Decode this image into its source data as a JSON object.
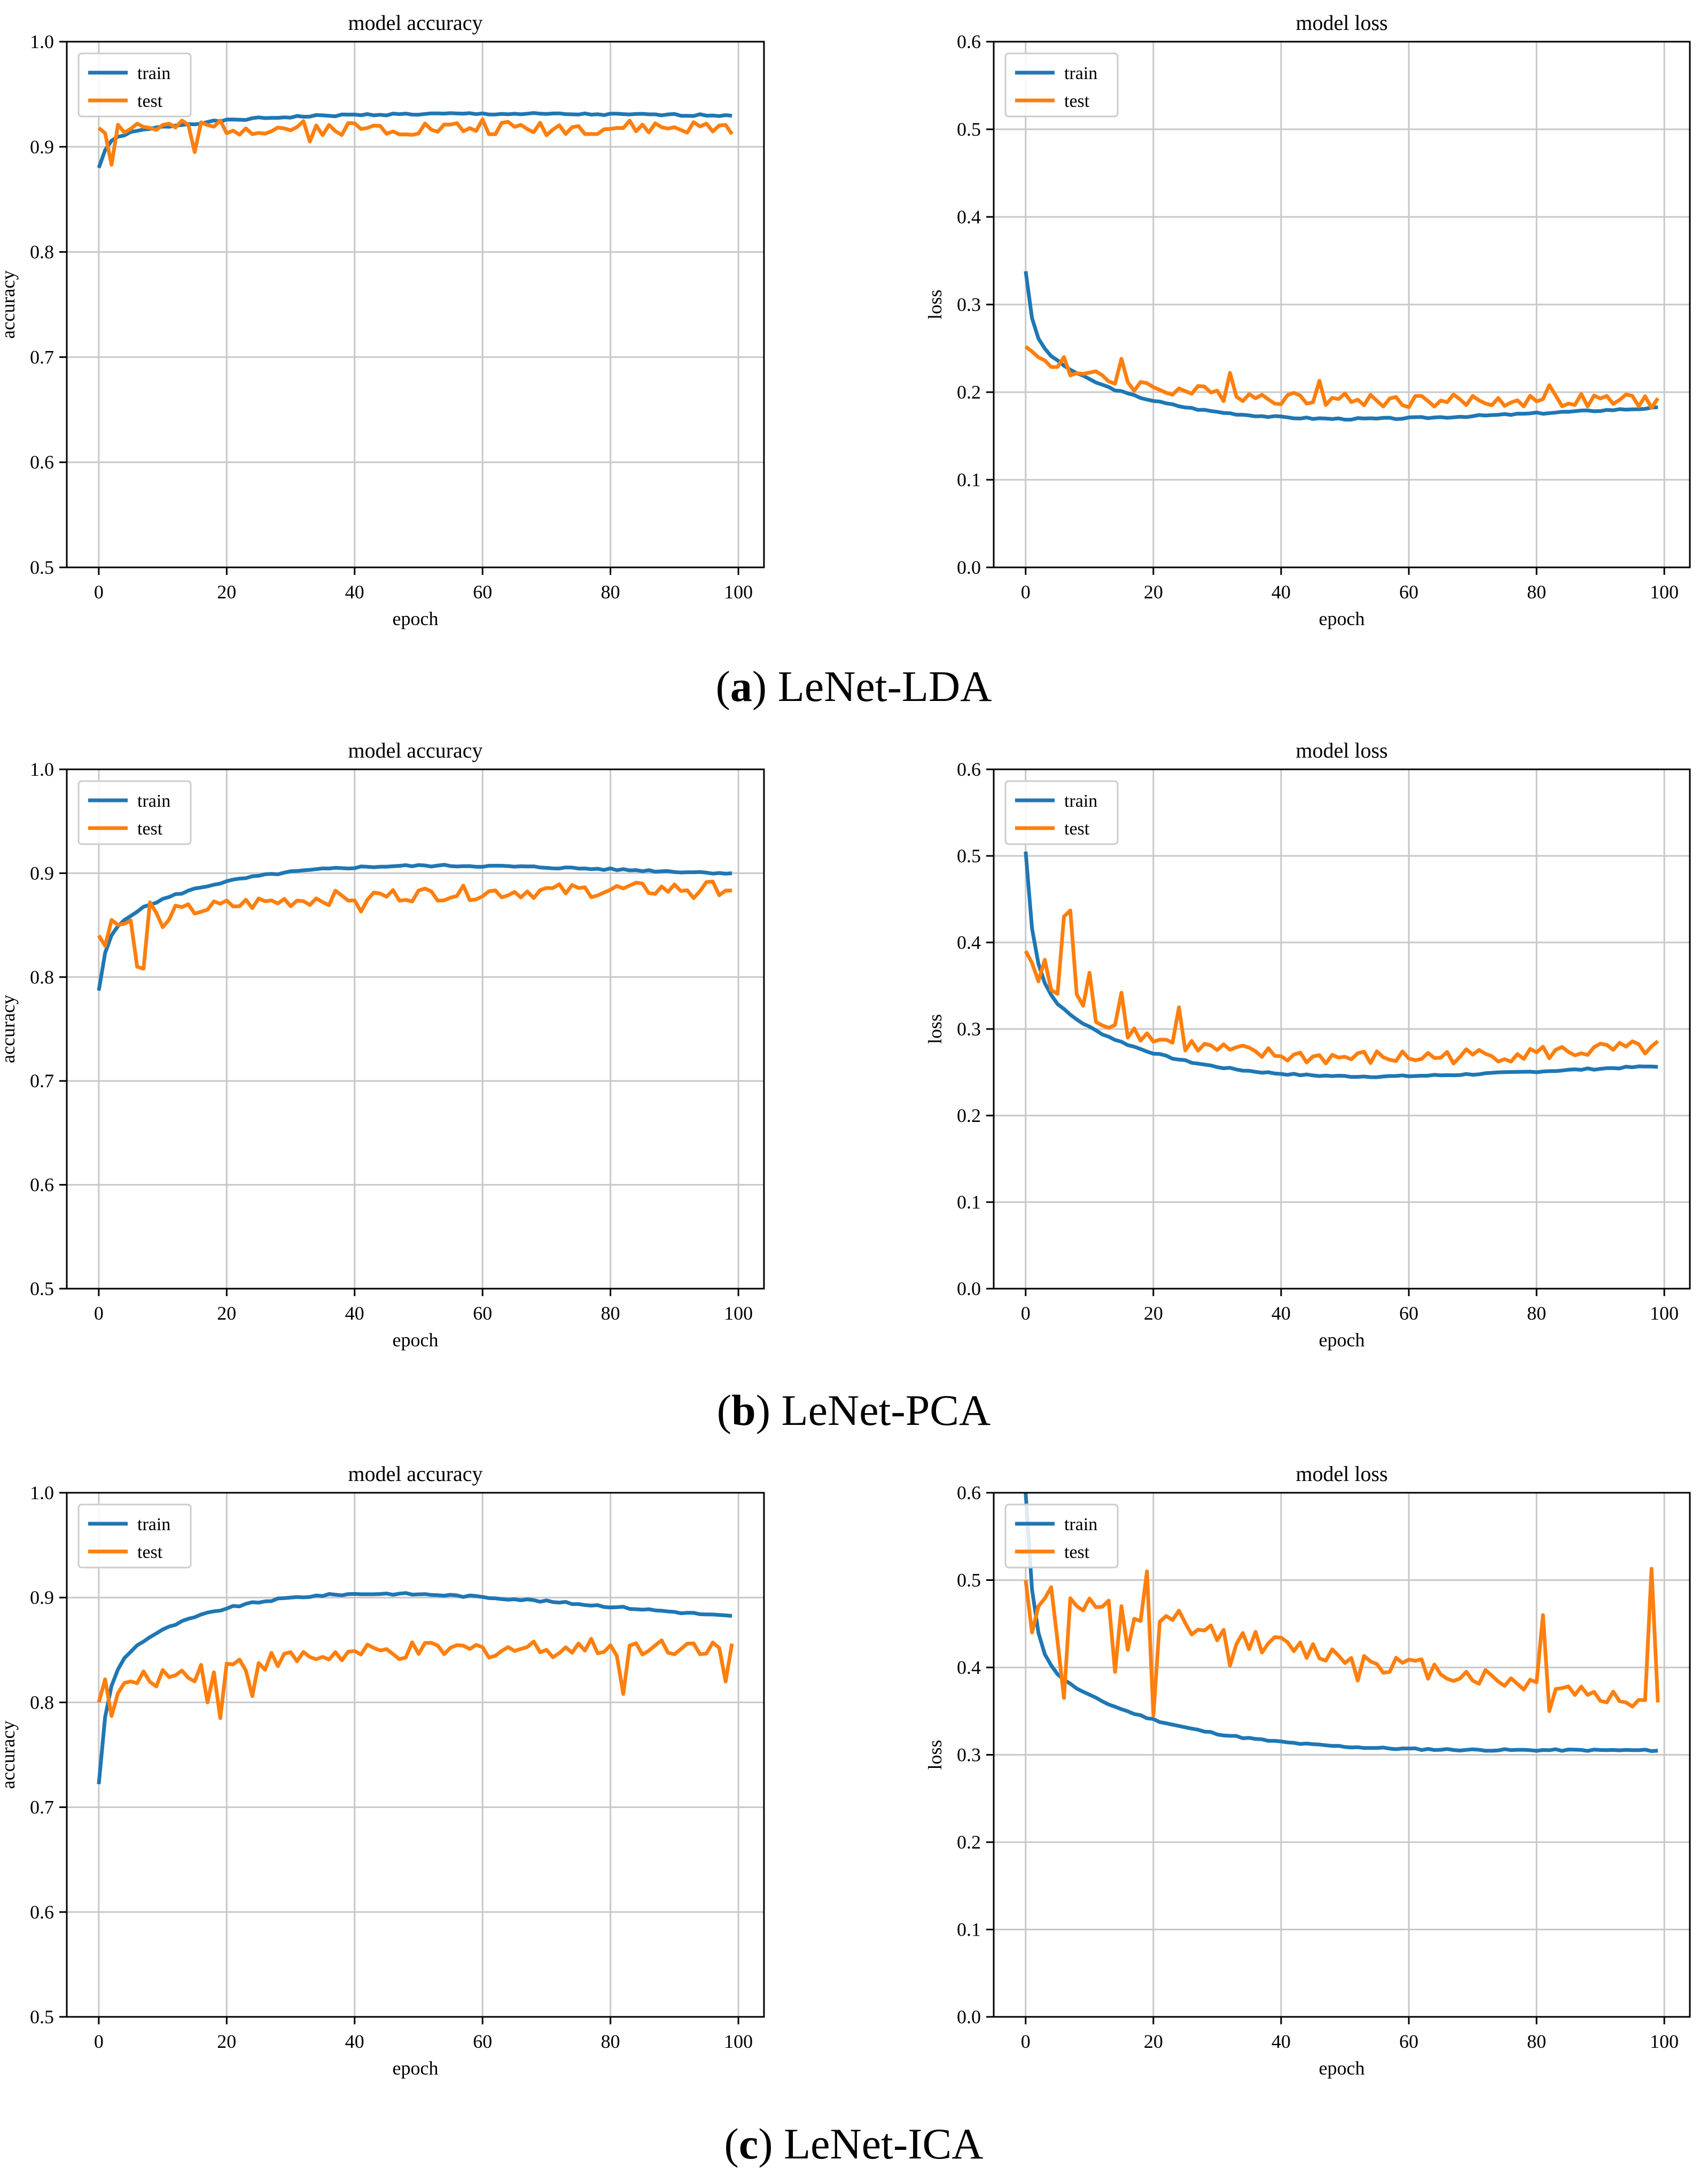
{
  "figure": {
    "captions": [
      {
        "letter": "a",
        "text": " LeNet-LDA"
      },
      {
        "letter": "b",
        "text": " LeNet-PCA"
      },
      {
        "letter": "c",
        "text": " LeNet-ICA"
      }
    ]
  },
  "colors": {
    "train": "#1f77b4",
    "test": "#ff7f0e",
    "grid": "#c8c8c8",
    "axis": "#000000"
  },
  "chart_data": [
    {
      "id": "lda-accuracy",
      "type": "line",
      "title": "model accuracy",
      "xlabel": "epoch",
      "ylabel": "accuracy",
      "xlim": [
        -5,
        104
      ],
      "ylim": [
        0.5,
        1.0
      ],
      "xticks": [
        0,
        20,
        40,
        60,
        80,
        100
      ],
      "yticks": [
        0.5,
        0.6,
        0.7,
        0.8,
        0.9,
        1.0
      ],
      "legend": "top-left",
      "series": [
        {
          "name": "train",
          "model": "curve",
          "start": 0.88,
          "end": 0.93,
          "jump": 0.022,
          "tau": 1.2,
          "kmid": 0.018,
          "noise": 0.001,
          "seed": 1
        },
        {
          "name": "test",
          "model": "curve",
          "start": 0.918,
          "end": 0.918,
          "jump": 0,
          "tau": 5,
          "kmid": 0.0,
          "noise": 0.007,
          "seed": 2,
          "spikes": [
            [
              2,
              0.883
            ],
            [
              6,
              0.922
            ],
            [
              15,
              0.895
            ],
            [
              19,
              0.925
            ],
            [
              33,
              0.905
            ],
            [
              60,
              0.926
            ]
          ]
        }
      ]
    },
    {
      "id": "lda-loss",
      "type": "line",
      "title": "model loss",
      "xlabel": "epoch",
      "ylabel": "loss",
      "xlim": [
        -5,
        104
      ],
      "ylim": [
        0.0,
        0.6
      ],
      "xticks": [
        0,
        20,
        40,
        60,
        80,
        100
      ],
      "yticks": [
        0.0,
        0.1,
        0.2,
        0.3,
        0.4,
        0.5,
        0.6
      ],
      "legend": "top-left",
      "series": [
        {
          "name": "train",
          "model": "curve",
          "start": 0.338,
          "end": 0.182,
          "jump": -0.055,
          "tau": 1.0,
          "kmid": -0.075,
          "noise": 0.001,
          "seed": 3
        },
        {
          "name": "test",
          "model": "curve",
          "start": 0.252,
          "end": 0.19,
          "jump": 0,
          "tau": 5,
          "kmid": -0.035,
          "noise": 0.008,
          "seed": 4,
          "spikes": [
            [
              6,
              0.24
            ],
            [
              15,
              0.238
            ],
            [
              32,
              0.222
            ],
            [
              46,
              0.213
            ],
            [
              82,
              0.208
            ]
          ]
        }
      ]
    },
    {
      "id": "pca-accuracy",
      "type": "line",
      "title": "model accuracy",
      "xlabel": "epoch",
      "ylabel": "accuracy",
      "xlim": [
        -5,
        104
      ],
      "ylim": [
        0.5,
        1.0
      ],
      "xticks": [
        0,
        20,
        40,
        60,
        80,
        100
      ],
      "yticks": [
        0.5,
        0.6,
        0.7,
        0.8,
        0.9,
        1.0
      ],
      "legend": "top-left",
      "series": [
        {
          "name": "train",
          "model": "curve",
          "start": 0.787,
          "end": 0.9,
          "jump": 0.04,
          "tau": 1.2,
          "kmid": 0.052,
          "noise": 0.001,
          "seed": 5
        },
        {
          "name": "test",
          "model": "curve",
          "start": 0.84,
          "end": 0.886,
          "jump": 0,
          "tau": 5,
          "kmid": 0.02,
          "noise": 0.007,
          "seed": 6,
          "spikes": [
            [
              1,
              0.83
            ],
            [
              2,
              0.855
            ],
            [
              6,
              0.81
            ],
            [
              7,
              0.808
            ],
            [
              8,
              0.872
            ],
            [
              10,
              0.848
            ],
            [
              41,
              0.863
            ],
            [
              58,
              0.874
            ],
            [
              93,
              0.876
            ]
          ]
        }
      ]
    },
    {
      "id": "pca-loss",
      "type": "line",
      "title": "model loss",
      "xlabel": "epoch",
      "ylabel": "loss",
      "xlim": [
        -5,
        104
      ],
      "ylim": [
        0.0,
        0.6
      ],
      "xticks": [
        0,
        20,
        40,
        60,
        80,
        100
      ],
      "yticks": [
        0.0,
        0.1,
        0.2,
        0.3,
        0.4,
        0.5,
        0.6
      ],
      "legend": "top-left",
      "series": [
        {
          "name": "train",
          "model": "curve",
          "start": 0.505,
          "end": 0.257,
          "jump": -0.12,
          "tau": 1.3,
          "kmid": -0.09,
          "noise": 0.001,
          "seed": 7
        },
        {
          "name": "test",
          "model": "curve",
          "start": 0.39,
          "end": 0.278,
          "jump": 0,
          "tau": 5,
          "kmid": -0.08,
          "noise": 0.009,
          "seed": 8,
          "spikes": [
            [
              2,
              0.355
            ],
            [
              3,
              0.38
            ],
            [
              4,
              0.345
            ],
            [
              6,
              0.43
            ],
            [
              7,
              0.437
            ],
            [
              8,
              0.34
            ],
            [
              10,
              0.365
            ],
            [
              15,
              0.342
            ],
            [
              24,
              0.325
            ]
          ]
        }
      ]
    },
    {
      "id": "ica-accuracy",
      "type": "line",
      "title": "model accuracy",
      "xlabel": "epoch",
      "ylabel": "accuracy",
      "xlim": [
        -5,
        104
      ],
      "ylim": [
        0.5,
        1.0
      ],
      "xticks": [
        0,
        20,
        40,
        60,
        80,
        100
      ],
      "yticks": [
        0.5,
        0.6,
        0.7,
        0.8,
        0.9,
        1.0
      ],
      "legend": "top-left",
      "series": [
        {
          "name": "train",
          "model": "curve",
          "start": 0.722,
          "end": 0.882,
          "jump": 0.085,
          "tau": 1.3,
          "kmid": 0.07,
          "noise": 0.001,
          "seed": 9
        },
        {
          "name": "test",
          "model": "curve",
          "start": 0.8,
          "end": 0.855,
          "jump": 0,
          "tau": 5,
          "kmid": 0.025,
          "noise": 0.009,
          "seed": 10,
          "spikes": [
            [
              1,
              0.822
            ],
            [
              2,
              0.787
            ],
            [
              15,
              0.82
            ],
            [
              17,
              0.8
            ],
            [
              19,
              0.785
            ],
            [
              24,
              0.806
            ],
            [
              82,
              0.808
            ],
            [
              98,
              0.82
            ]
          ]
        }
      ]
    },
    {
      "id": "ica-loss",
      "type": "line",
      "title": "model loss",
      "xlabel": "epoch",
      "ylabel": "loss",
      "xlim": [
        -5,
        104
      ],
      "ylim": [
        0.0,
        0.6
      ],
      "xticks": [
        0,
        20,
        40,
        60,
        80,
        100
      ],
      "yticks": [
        0.0,
        0.1,
        0.2,
        0.3,
        0.4,
        0.5,
        0.6
      ],
      "legend": "top-left",
      "series": [
        {
          "name": "train",
          "model": "curve",
          "start": 0.6,
          "end": 0.305,
          "jump": -0.16,
          "tau": 1.2,
          "kmid": -0.075,
          "noise": 0.001,
          "seed": 11
        },
        {
          "name": "test",
          "model": "curve",
          "start": 0.5,
          "end": 0.36,
          "jump": 0,
          "tau": 5,
          "kmid": -0.02,
          "noise": 0.012,
          "seed": 12,
          "spikes": [
            [
              1,
              0.44
            ],
            [
              2,
              0.47
            ],
            [
              5,
              0.43
            ],
            [
              6,
              0.365
            ],
            [
              14,
              0.395
            ],
            [
              16,
              0.42
            ],
            [
              19,
              0.51
            ],
            [
              20,
              0.345
            ],
            [
              24,
              0.465
            ],
            [
              32,
              0.402
            ],
            [
              52,
              0.385
            ],
            [
              81,
              0.46
            ],
            [
              82,
              0.35
            ],
            [
              91,
              0.36
            ],
            [
              94,
              0.36
            ],
            [
              98,
              0.513
            ],
            [
              99,
              0.36
            ]
          ]
        }
      ]
    }
  ]
}
